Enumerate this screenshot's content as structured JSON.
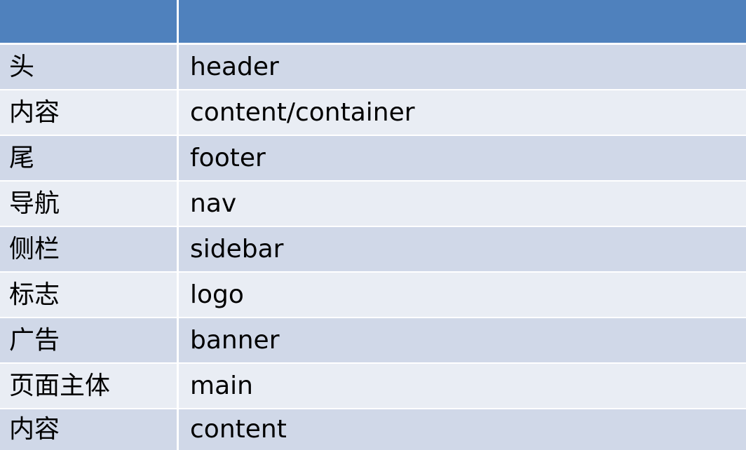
{
  "colors": {
    "header": "#4f81bd",
    "row_dark": "#d0d8e8",
    "row_light": "#e9edf4"
  },
  "table": {
    "header": [
      "",
      ""
    ],
    "rows": [
      {
        "zh": "头",
        "en": "header"
      },
      {
        "zh": "内容",
        "en": "content/container"
      },
      {
        "zh": "尾",
        "en": "footer"
      },
      {
        "zh": "导航",
        "en": "nav"
      },
      {
        "zh": "侧栏",
        "en": "sidebar"
      },
      {
        "zh": "标志",
        "en": "logo"
      },
      {
        "zh": "广告",
        "en": "banner"
      },
      {
        "zh": "页面主体",
        "en": "main"
      },
      {
        "zh": "内容",
        "en": "content"
      }
    ]
  }
}
